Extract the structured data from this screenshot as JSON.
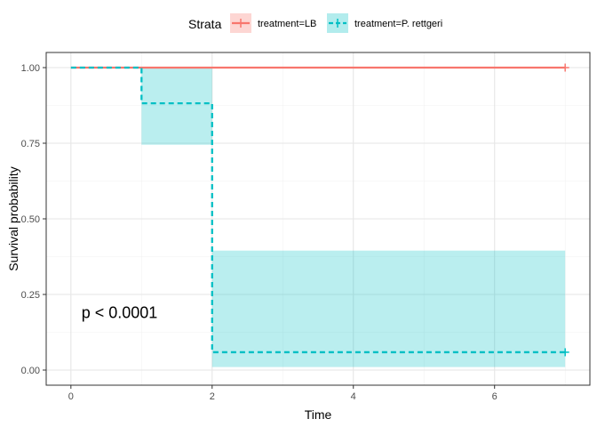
{
  "chart_data": {
    "type": "line",
    "subtype": "step",
    "title": "",
    "xlabel": "Time",
    "ylabel": "Survival probability",
    "xlim": [
      -0.35,
      7.35
    ],
    "ylim": [
      -0.05,
      1.05
    ],
    "x_ticks": [
      0,
      2,
      4,
      6
    ],
    "y_ticks": [
      0.0,
      0.25,
      0.5,
      0.75,
      1.0
    ],
    "x_tick_labels": [
      "0",
      "2",
      "4",
      "6"
    ],
    "y_tick_labels": [
      "0.00",
      "0.25",
      "0.50",
      "0.75",
      "1.00"
    ],
    "grid": true,
    "legend_title": "Strata",
    "legend_position": "top",
    "annotation": "p < 0.0001",
    "annotation_at": [
      0.15,
      0.19
    ],
    "series": [
      {
        "name": "treatment=LB",
        "color": "#F8766D",
        "line_style": "solid",
        "steps": [
          [
            0,
            1.0
          ],
          [
            7,
            1.0
          ]
        ],
        "ci": [
          {
            "x0": 0,
            "x1": 7,
            "lower": 1.0,
            "upper": 1.0
          }
        ],
        "censor_marks": [
          [
            7,
            1.0
          ]
        ]
      },
      {
        "name": "treatment=P. rettgeri",
        "color": "#00BFC4",
        "line_style": "dashed",
        "steps": [
          [
            0,
            1.0
          ],
          [
            1,
            0.882
          ],
          [
            2,
            0.059
          ],
          [
            7,
            0.059
          ]
        ],
        "ci": [
          {
            "x0": 0,
            "x1": 1,
            "lower": 1.0,
            "upper": 1.0
          },
          {
            "x0": 1,
            "x1": 2,
            "lower": 0.745,
            "upper": 1.0
          },
          {
            "x0": 2,
            "x1": 7,
            "lower": 0.01,
            "upper": 0.395
          }
        ],
        "censor_marks": [
          [
            7,
            0.059
          ]
        ]
      }
    ]
  }
}
